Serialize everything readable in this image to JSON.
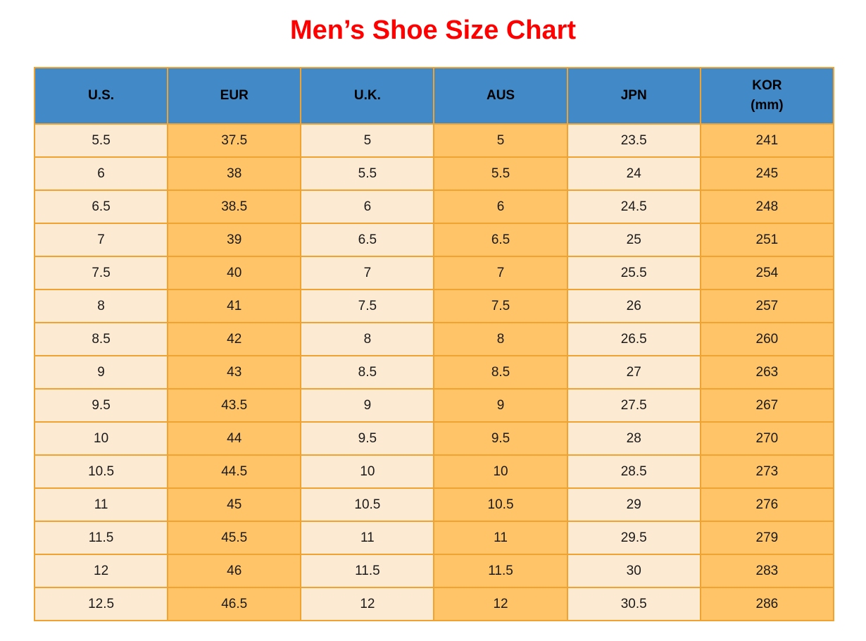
{
  "title": "Men’s Shoe Size Chart",
  "colors": {
    "title": "#ff0000",
    "header_bg": "#4289c7",
    "header_text": "#000000",
    "col_light": "#fdead3",
    "col_orange": "#ffc468",
    "border": "#f0a330",
    "cell_text": "#1a1a1a"
  },
  "chart_data": {
    "type": "table",
    "title": "Men’s Shoe Size Chart",
    "columns": [
      "U.S.",
      "EUR",
      "U.K.",
      "AUS",
      "JPN",
      "KOR"
    ],
    "kor_unit": "(mm)",
    "rows": [
      [
        "5.5",
        "37.5",
        "5",
        "5",
        "23.5",
        "241"
      ],
      [
        "6",
        "38",
        "5.5",
        "5.5",
        "24",
        "245"
      ],
      [
        "6.5",
        "38.5",
        "6",
        "6",
        "24.5",
        "248"
      ],
      [
        "7",
        "39",
        "6.5",
        "6.5",
        "25",
        "251"
      ],
      [
        "7.5",
        "40",
        "7",
        "7",
        "25.5",
        "254"
      ],
      [
        "8",
        "41",
        "7.5",
        "7.5",
        "26",
        "257"
      ],
      [
        "8.5",
        "42",
        "8",
        "8",
        "26.5",
        "260"
      ],
      [
        "9",
        "43",
        "8.5",
        "8.5",
        "27",
        "263"
      ],
      [
        "9.5",
        "43.5",
        "9",
        "9",
        "27.5",
        "267"
      ],
      [
        "10",
        "44",
        "9.5",
        "9.5",
        "28",
        "270"
      ],
      [
        "10.5",
        "44.5",
        "10",
        "10",
        "28.5",
        "273"
      ],
      [
        "11",
        "45",
        "10.5",
        "10.5",
        "29",
        "276"
      ],
      [
        "11.5",
        "45.5",
        "11",
        "11",
        "29.5",
        "279"
      ],
      [
        "12",
        "46",
        "11.5",
        "11.5",
        "30",
        "283"
      ],
      [
        "12.5",
        "46.5",
        "12",
        "12",
        "30.5",
        "286"
      ]
    ]
  }
}
